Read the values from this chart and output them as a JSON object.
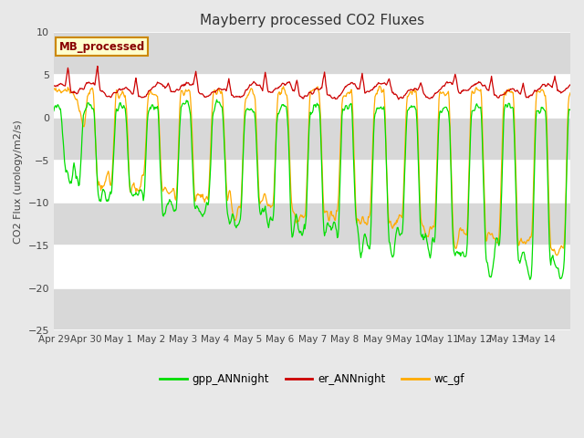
{
  "title": "Mayberry processed CO2 Fluxes",
  "ylabel": "CO2 Flux (urology/m2/s)",
  "ylim": [
    -25,
    10
  ],
  "yticks": [
    -25,
    -20,
    -15,
    -10,
    -5,
    0,
    5,
    10
  ],
  "background_color": "#e8e8e8",
  "plot_bg_color": "#ffffff",
  "stripe_color": "#d8d8d8",
  "line_colors": {
    "gpp": "#00dd00",
    "er": "#cc0000",
    "wc": "#ffaa00"
  },
  "legend_label": "MB_processed",
  "legend_bg": "#ffffcc",
  "legend_border": "#cc8800",
  "series_labels": [
    "gpp_ANNnight",
    "er_ANNnight",
    "wc_gf"
  ],
  "title_fontsize": 11,
  "axis_fontsize": 8,
  "ylabel_fontsize": 8
}
